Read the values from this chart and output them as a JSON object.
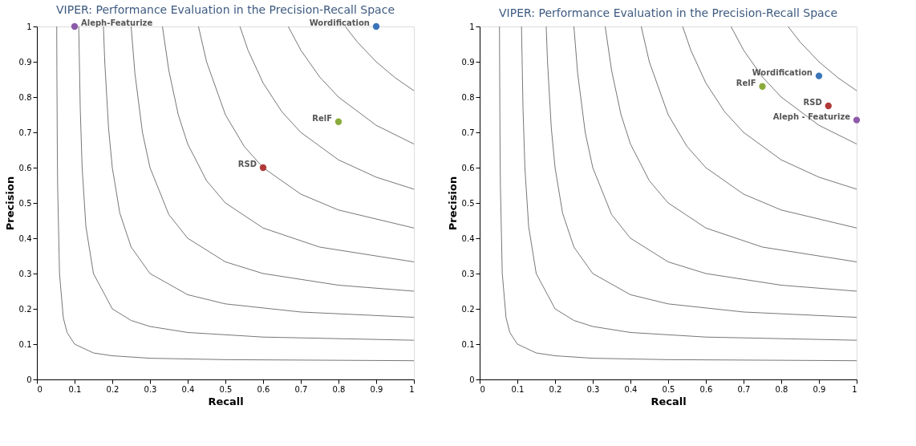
{
  "chart_data": [
    {
      "type": "scatter",
      "title": "VIPER: Performance Evaluation in the Precision-Recall Space",
      "xlabel": "Recall",
      "ylabel": "Precision",
      "xlim": [
        0,
        1
      ],
      "ylim": [
        0,
        1
      ],
      "xticks": [
        0,
        0.1,
        0.2,
        0.3,
        0.4,
        0.5,
        0.6,
        0.7,
        0.8,
        0.9,
        1
      ],
      "yticks": [
        0,
        0.1,
        0.2,
        0.3,
        0.4,
        0.5,
        0.6,
        0.7,
        0.8,
        0.9,
        1
      ],
      "line_style": "solid",
      "grid": false,
      "legend": false,
      "marker": "circle",
      "series": [
        {
          "type": "line",
          "marker": "none",
          "color": "#777777",
          "x": [
            0.0526,
            0.053,
            0.054,
            0.055,
            0.06,
            0.07,
            0.08,
            0.1,
            0.15,
            0.2,
            0.3,
            0.5,
            1
          ],
          "values": [
            1,
            0.883,
            0.675,
            0.55,
            0.3,
            0.175,
            0.133,
            0.1,
            0.075,
            0.067,
            0.06,
            0.056,
            0.053
          ]
        },
        {
          "type": "line",
          "marker": "none",
          "color": "#777777",
          "x": [
            0.111,
            0.115,
            0.12,
            0.13,
            0.15,
            0.2,
            0.25,
            0.3,
            0.4,
            0.6,
            1
          ],
          "values": [
            1,
            0.767,
            0.6,
            0.433,
            0.3,
            0.2,
            0.167,
            0.15,
            0.133,
            0.12,
            0.111
          ]
        },
        {
          "type": "line",
          "marker": "none",
          "color": "#777777",
          "x": [
            0.1765,
            0.18,
            0.19,
            0.2,
            0.22,
            0.25,
            0.3,
            0.4,
            0.5,
            0.7,
            1
          ],
          "values": [
            1,
            0.9,
            0.713,
            0.6,
            0.471,
            0.375,
            0.3,
            0.24,
            0.214,
            0.191,
            0.176
          ]
        },
        {
          "type": "line",
          "marker": "none",
          "color": "#777777",
          "x": [
            0.25,
            0.26,
            0.28,
            0.3,
            0.35,
            0.4,
            0.5,
            0.6,
            0.8,
            1
          ],
          "values": [
            1,
            0.867,
            0.7,
            0.6,
            0.467,
            0.4,
            0.333,
            0.3,
            0.267,
            0.25
          ]
        },
        {
          "type": "line",
          "marker": "none",
          "color": "#777777",
          "x": [
            0.333,
            0.35,
            0.375,
            0.4,
            0.45,
            0.5,
            0.6,
            0.75,
            1
          ],
          "values": [
            1,
            0.875,
            0.75,
            0.667,
            0.563,
            0.5,
            0.429,
            0.375,
            0.333
          ]
        },
        {
          "type": "line",
          "marker": "none",
          "color": "#777777",
          "x": [
            0.4286,
            0.45,
            0.5,
            0.55,
            0.6,
            0.7,
            0.8,
            1
          ],
          "values": [
            1,
            0.9,
            0.75,
            0.66,
            0.6,
            0.525,
            0.48,
            0.429
          ]
        },
        {
          "type": "line",
          "marker": "none",
          "color": "#777777",
          "x": [
            0.5385,
            0.56,
            0.6,
            0.65,
            0.7,
            0.8,
            0.9,
            1
          ],
          "values": [
            1,
            0.933,
            0.84,
            0.758,
            0.7,
            0.622,
            0.573,
            0.539
          ]
        },
        {
          "type": "line",
          "marker": "none",
          "color": "#777777",
          "x": [
            0.6667,
            0.7,
            0.75,
            0.8,
            0.9,
            1
          ],
          "values": [
            1,
            0.933,
            0.857,
            0.8,
            0.72,
            0.667
          ]
        },
        {
          "type": "line",
          "marker": "none",
          "color": "#777777",
          "x": [
            0.818,
            0.85,
            0.9,
            0.95,
            1
          ],
          "values": [
            1,
            0.956,
            0.9,
            0.855,
            0.818
          ]
        },
        {
          "type": "scatter",
          "name": "Aleph-Featurize",
          "color": "#8c5aa8",
          "x": [
            0.1
          ],
          "values": [
            1
          ]
        },
        {
          "type": "scatter",
          "name": "Wordification",
          "color": "#3a75b8",
          "x": [
            0.9
          ],
          "values": [
            1
          ]
        },
        {
          "type": "scatter",
          "name": "RelF",
          "color": "#8aab3c",
          "x": [
            0.8
          ],
          "values": [
            0.73
          ]
        },
        {
          "type": "scatter",
          "name": "RSD",
          "color": "#b03a3a",
          "x": [
            0.6
          ],
          "values": [
            0.6
          ]
        }
      ]
    },
    {
      "type": "scatter",
      "title": "VIPER: Performance Evaluation in the Precision-Recall Space",
      "xlabel": "Recall",
      "ylabel": "Precision",
      "xlim": [
        0,
        1
      ],
      "ylim": [
        0,
        1
      ],
      "xticks": [
        0,
        0.1,
        0.2,
        0.3,
        0.4,
        0.5,
        0.6,
        0.7,
        0.8,
        0.9,
        1
      ],
      "yticks": [
        0,
        0.1,
        0.2,
        0.3,
        0.4,
        0.5,
        0.6,
        0.7,
        0.8,
        0.9,
        1
      ],
      "line_style": "solid",
      "grid": false,
      "legend": false,
      "marker": "circle",
      "series": [
        {
          "type": "line",
          "marker": "none",
          "color": "#777777",
          "x": [
            0.0526,
            0.053,
            0.054,
            0.055,
            0.06,
            0.07,
            0.08,
            0.1,
            0.15,
            0.2,
            0.3,
            0.5,
            1
          ],
          "values": [
            1,
            0.883,
            0.675,
            0.55,
            0.3,
            0.175,
            0.133,
            0.1,
            0.075,
            0.067,
            0.06,
            0.056,
            0.053
          ]
        },
        {
          "type": "line",
          "marker": "none",
          "color": "#777777",
          "x": [
            0.111,
            0.115,
            0.12,
            0.13,
            0.15,
            0.2,
            0.25,
            0.3,
            0.4,
            0.6,
            1
          ],
          "values": [
            1,
            0.767,
            0.6,
            0.433,
            0.3,
            0.2,
            0.167,
            0.15,
            0.133,
            0.12,
            0.111
          ]
        },
        {
          "type": "line",
          "marker": "none",
          "color": "#777777",
          "x": [
            0.1765,
            0.18,
            0.19,
            0.2,
            0.22,
            0.25,
            0.3,
            0.4,
            0.5,
            0.7,
            1
          ],
          "values": [
            1,
            0.9,
            0.713,
            0.6,
            0.471,
            0.375,
            0.3,
            0.24,
            0.214,
            0.191,
            0.176
          ]
        },
        {
          "type": "line",
          "marker": "none",
          "color": "#777777",
          "x": [
            0.25,
            0.26,
            0.28,
            0.3,
            0.35,
            0.4,
            0.5,
            0.6,
            0.8,
            1
          ],
          "values": [
            1,
            0.867,
            0.7,
            0.6,
            0.467,
            0.4,
            0.333,
            0.3,
            0.267,
            0.25
          ]
        },
        {
          "type": "line",
          "marker": "none",
          "color": "#777777",
          "x": [
            0.333,
            0.35,
            0.375,
            0.4,
            0.45,
            0.5,
            0.6,
            0.75,
            1
          ],
          "values": [
            1,
            0.875,
            0.75,
            0.667,
            0.563,
            0.5,
            0.429,
            0.375,
            0.333
          ]
        },
        {
          "type": "line",
          "marker": "none",
          "color": "#777777",
          "x": [
            0.4286,
            0.45,
            0.5,
            0.55,
            0.6,
            0.7,
            0.8,
            1
          ],
          "values": [
            1,
            0.9,
            0.75,
            0.66,
            0.6,
            0.525,
            0.48,
            0.429
          ]
        },
        {
          "type": "line",
          "marker": "none",
          "color": "#777777",
          "x": [
            0.5385,
            0.56,
            0.6,
            0.65,
            0.7,
            0.8,
            0.9,
            1
          ],
          "values": [
            1,
            0.933,
            0.84,
            0.758,
            0.7,
            0.622,
            0.573,
            0.539
          ]
        },
        {
          "type": "line",
          "marker": "none",
          "color": "#777777",
          "x": [
            0.6667,
            0.7,
            0.75,
            0.8,
            0.9,
            1
          ],
          "values": [
            1,
            0.933,
            0.857,
            0.8,
            0.72,
            0.667
          ]
        },
        {
          "type": "line",
          "marker": "none",
          "color": "#777777",
          "x": [
            0.818,
            0.85,
            0.9,
            0.95,
            1
          ],
          "values": [
            1,
            0.956,
            0.9,
            0.855,
            0.818
          ]
        },
        {
          "type": "scatter",
          "name": "Wordification",
          "color": "#3a75b8",
          "x": [
            0.9
          ],
          "values": [
            0.86
          ]
        },
        {
          "type": "scatter",
          "name": "RelF",
          "color": "#8aab3c",
          "x": [
            0.75
          ],
          "values": [
            0.83
          ]
        },
        {
          "type": "scatter",
          "name": "RSD",
          "color": "#b03a3a",
          "x": [
            0.925
          ],
          "values": [
            0.775
          ]
        },
        {
          "type": "scatter",
          "name": "Aleph - Featurize",
          "color": "#8c5aa8",
          "x": [
            1.0
          ],
          "values": [
            0.735
          ]
        }
      ]
    }
  ]
}
